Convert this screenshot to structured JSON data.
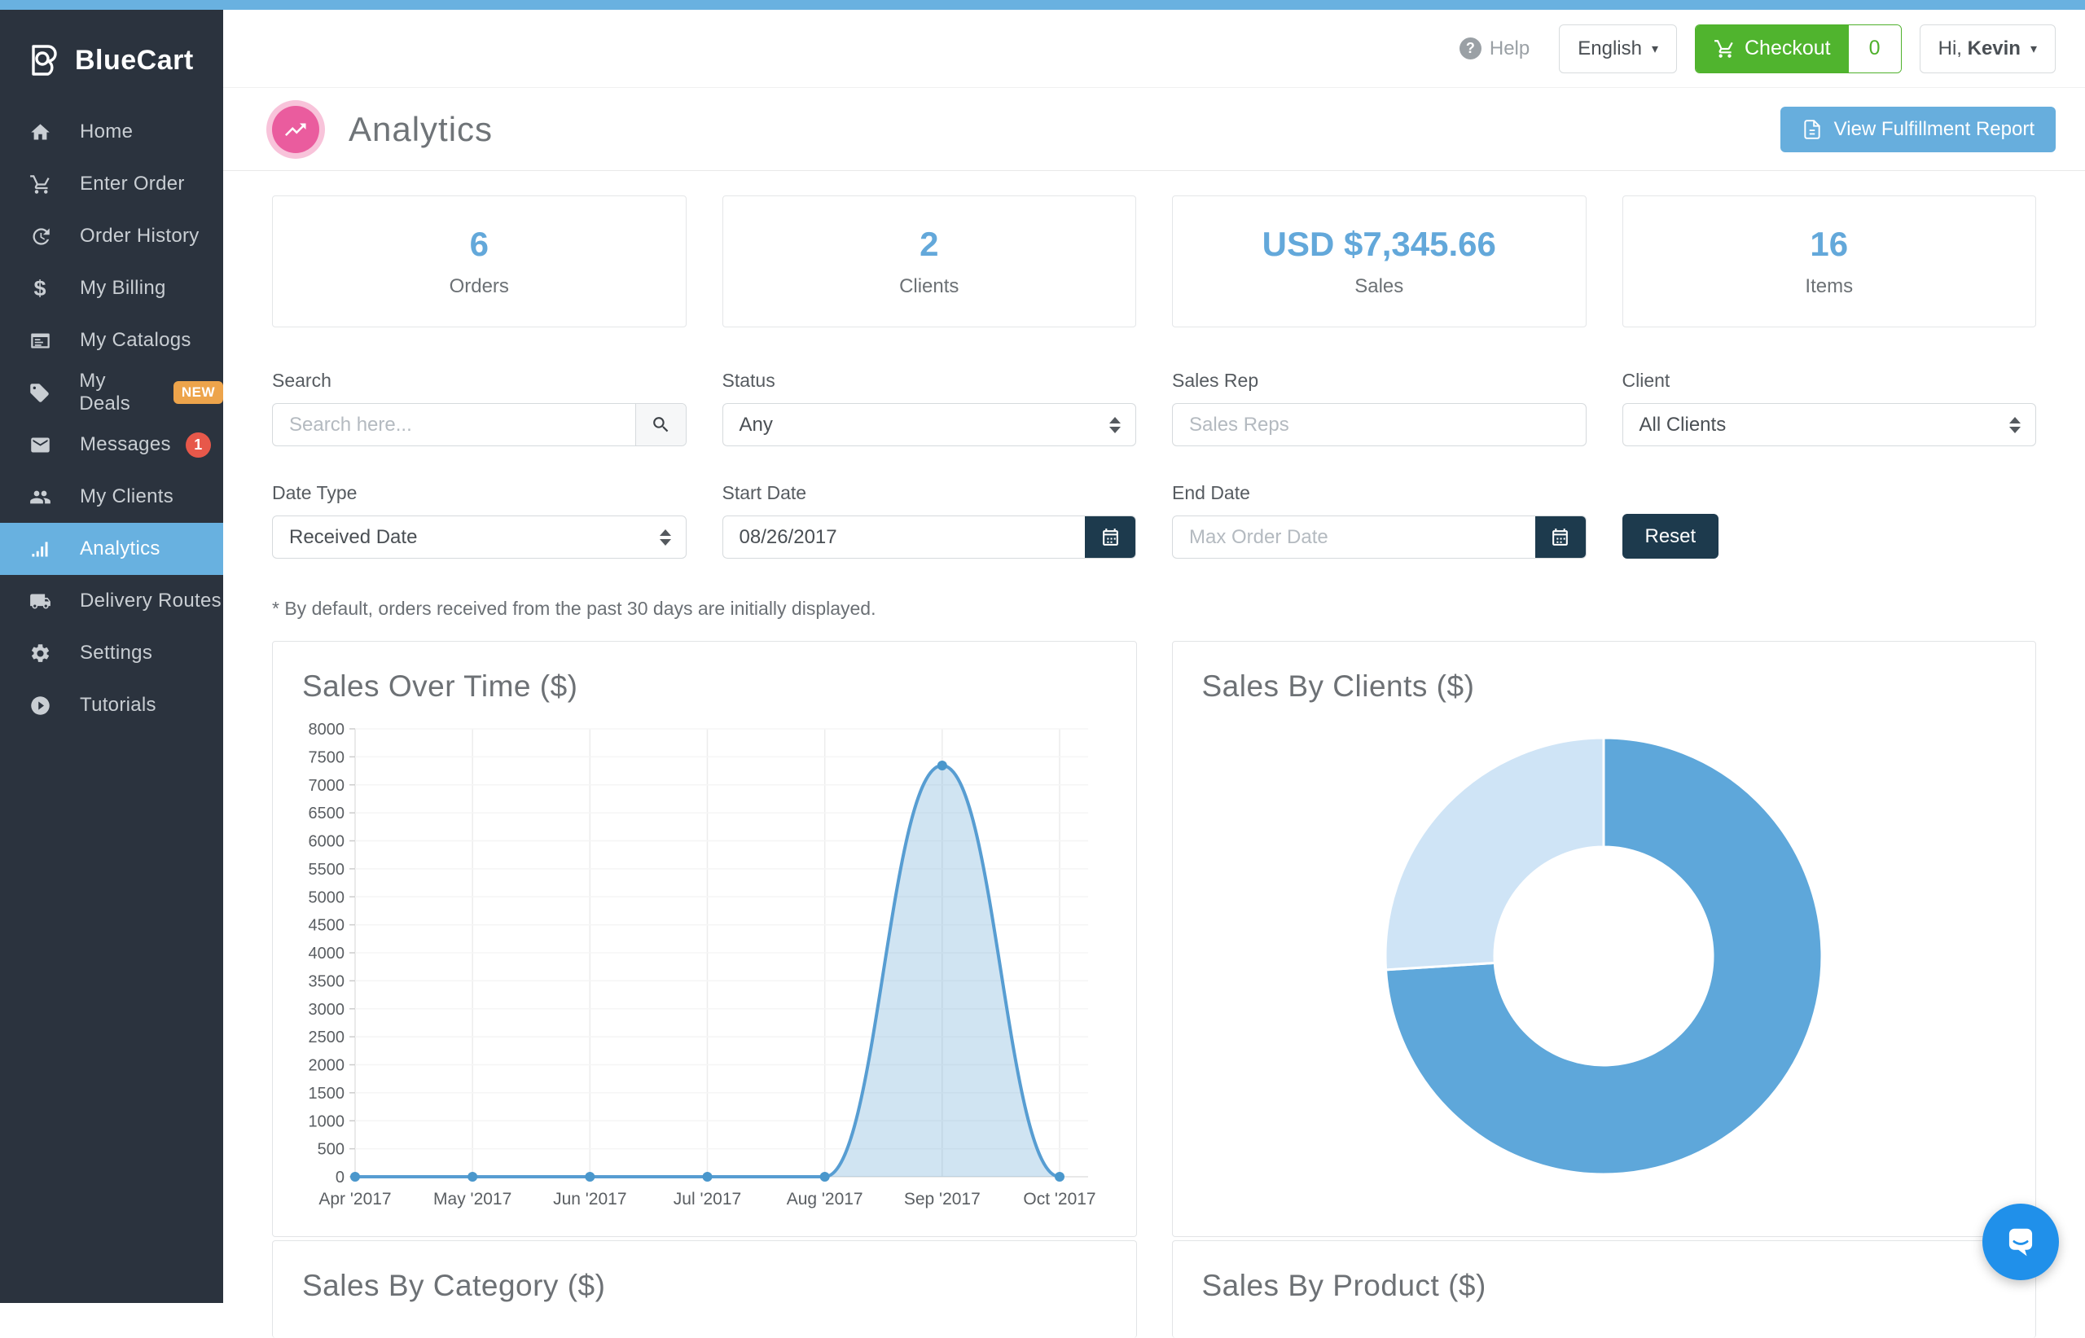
{
  "topbar": {
    "help_label": "Help",
    "language": "English",
    "checkout_label": "Checkout",
    "cart_count": "0",
    "greeting": "Hi, ",
    "user_name": "Kevin"
  },
  "sidebar": {
    "brand": "BlueCart",
    "items": [
      {
        "label": "Home",
        "icon": "home-icon"
      },
      {
        "label": "Enter Order",
        "icon": "cart-icon"
      },
      {
        "label": "Order History",
        "icon": "history-icon"
      },
      {
        "label": "My Billing",
        "icon": "dollar-icon"
      },
      {
        "label": "My Catalogs",
        "icon": "catalog-icon"
      },
      {
        "label": "My Deals",
        "icon": "tag-icon",
        "badge": "NEW"
      },
      {
        "label": "Messages",
        "icon": "envelope-icon",
        "count": "1"
      },
      {
        "label": "My Clients",
        "icon": "users-icon"
      },
      {
        "label": "Analytics",
        "icon": "bar-chart-icon",
        "active": true
      },
      {
        "label": "Delivery Routes",
        "icon": "truck-icon"
      },
      {
        "label": "Settings",
        "icon": "gear-icon"
      },
      {
        "label": "Tutorials",
        "icon": "play-icon"
      }
    ]
  },
  "header": {
    "title": "Analytics",
    "report_button": "View Fulfillment Report"
  },
  "stats": [
    {
      "value": "6",
      "label": "Orders"
    },
    {
      "value": "2",
      "label": "Clients"
    },
    {
      "value": "USD $7,345.66",
      "label": "Sales"
    },
    {
      "value": "16",
      "label": "Items"
    }
  ],
  "filters": {
    "search": {
      "label": "Search",
      "placeholder": "Search here..."
    },
    "status": {
      "label": "Status",
      "value": "Any"
    },
    "sales_rep": {
      "label": "Sales Rep",
      "placeholder": "Sales Reps"
    },
    "client": {
      "label": "Client",
      "value": "All Clients"
    },
    "date_type": {
      "label": "Date Type",
      "value": "Received Date"
    },
    "start_date": {
      "label": "Start Date",
      "value": "08/26/2017"
    },
    "end_date": {
      "label": "End Date",
      "placeholder": "Max Order Date"
    },
    "reset_label": "Reset",
    "note": "* By default, orders received from the past 30 days are initially displayed."
  },
  "chart_data": [
    {
      "type": "area",
      "title": "Sales Over Time ($)",
      "x": [
        "Apr '2017",
        "May '2017",
        "Jun '2017",
        "Jul '2017",
        "Aug '2017",
        "Sep '2017",
        "Oct '2017"
      ],
      "series": [
        {
          "name": "Sales",
          "values": [
            0,
            0,
            0,
            0,
            0,
            7345.66,
            0
          ]
        }
      ],
      "ylim": [
        0,
        8000
      ],
      "ytick_step": 500,
      "grid": true,
      "legend": "none",
      "line_color": "#579dd2",
      "point_color": "#4a97cc",
      "fill_color": "rgba(87,157,210,0.28)"
    },
    {
      "type": "donut",
      "title": "Sales By Clients ($)",
      "slices": [
        {
          "fraction": 0.74,
          "color": "#5ea7da"
        },
        {
          "fraction": 0.26,
          "color": "#cfe4f6"
        }
      ],
      "legend": "none"
    },
    {
      "title": "Sales By Category ($)"
    },
    {
      "title": "Sales By Product ($)"
    }
  ],
  "colors": {
    "accent_blue": "#68b1e0",
    "sidebar_bg": "#2b333e",
    "green": "#50b42e",
    "navy": "#1d3a4d",
    "pink": "#ea5c9e",
    "stat_blue": "#63a8da",
    "chat_blue": "#2090ea"
  }
}
